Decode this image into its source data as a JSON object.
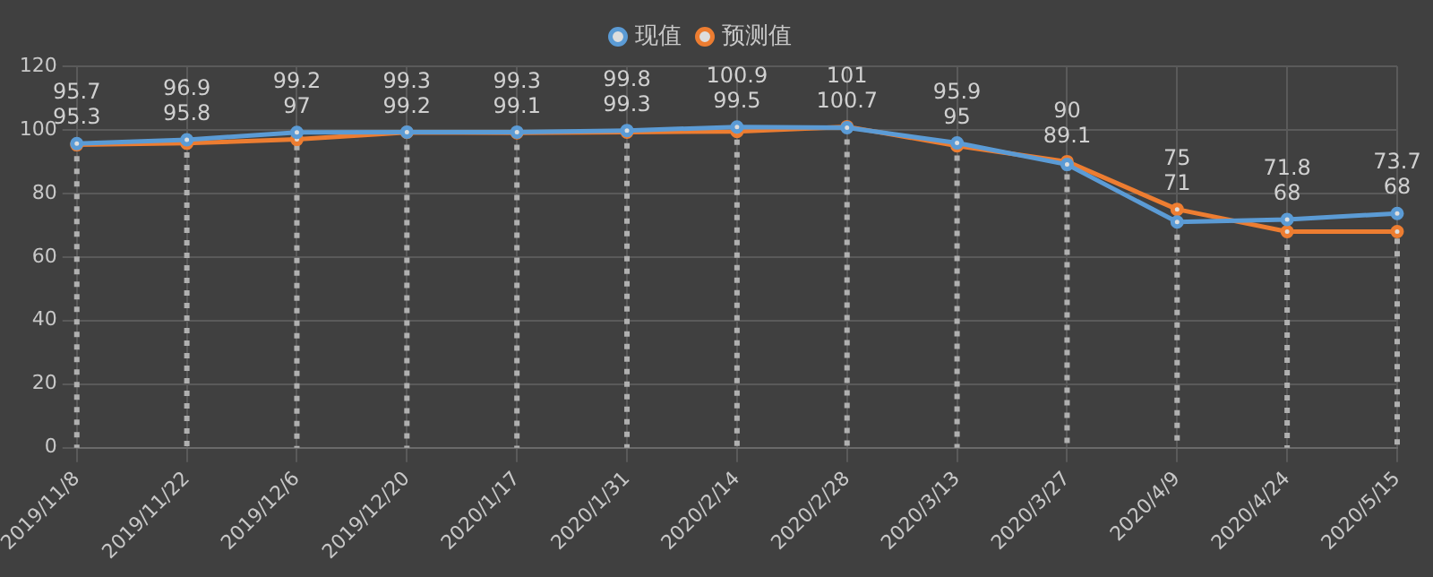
{
  "chart_data": {
    "type": "line",
    "categories": [
      "2019/11/8",
      "2019/11/22",
      "2019/12/6",
      "2019/12/20",
      "2020/1/17",
      "2020/1/31",
      "2020/2/14",
      "2020/2/28",
      "2020/3/13",
      "2020/3/27",
      "2020/4/9",
      "2020/4/24",
      "2020/5/15"
    ],
    "series": [
      {
        "name": "现值",
        "color": "#5b9bd5",
        "values": [
          95.7,
          96.9,
          99.2,
          99.3,
          99.3,
          99.8,
          100.9,
          100.7,
          95.9,
          89.1,
          71,
          71.8,
          73.7
        ]
      },
      {
        "name": "预测值",
        "color": "#ed7d31",
        "values": [
          95.3,
          95.8,
          97,
          99.2,
          99.1,
          99.3,
          99.5,
          101,
          95,
          90,
          75,
          68,
          68
        ]
      }
    ],
    "ylim": [
      0,
      120
    ],
    "yticks": [
      0,
      20,
      40,
      60,
      80,
      100,
      120
    ],
    "grid": true,
    "legend": "top",
    "marker": "circle",
    "line_style": "solid",
    "data_labels": true
  }
}
